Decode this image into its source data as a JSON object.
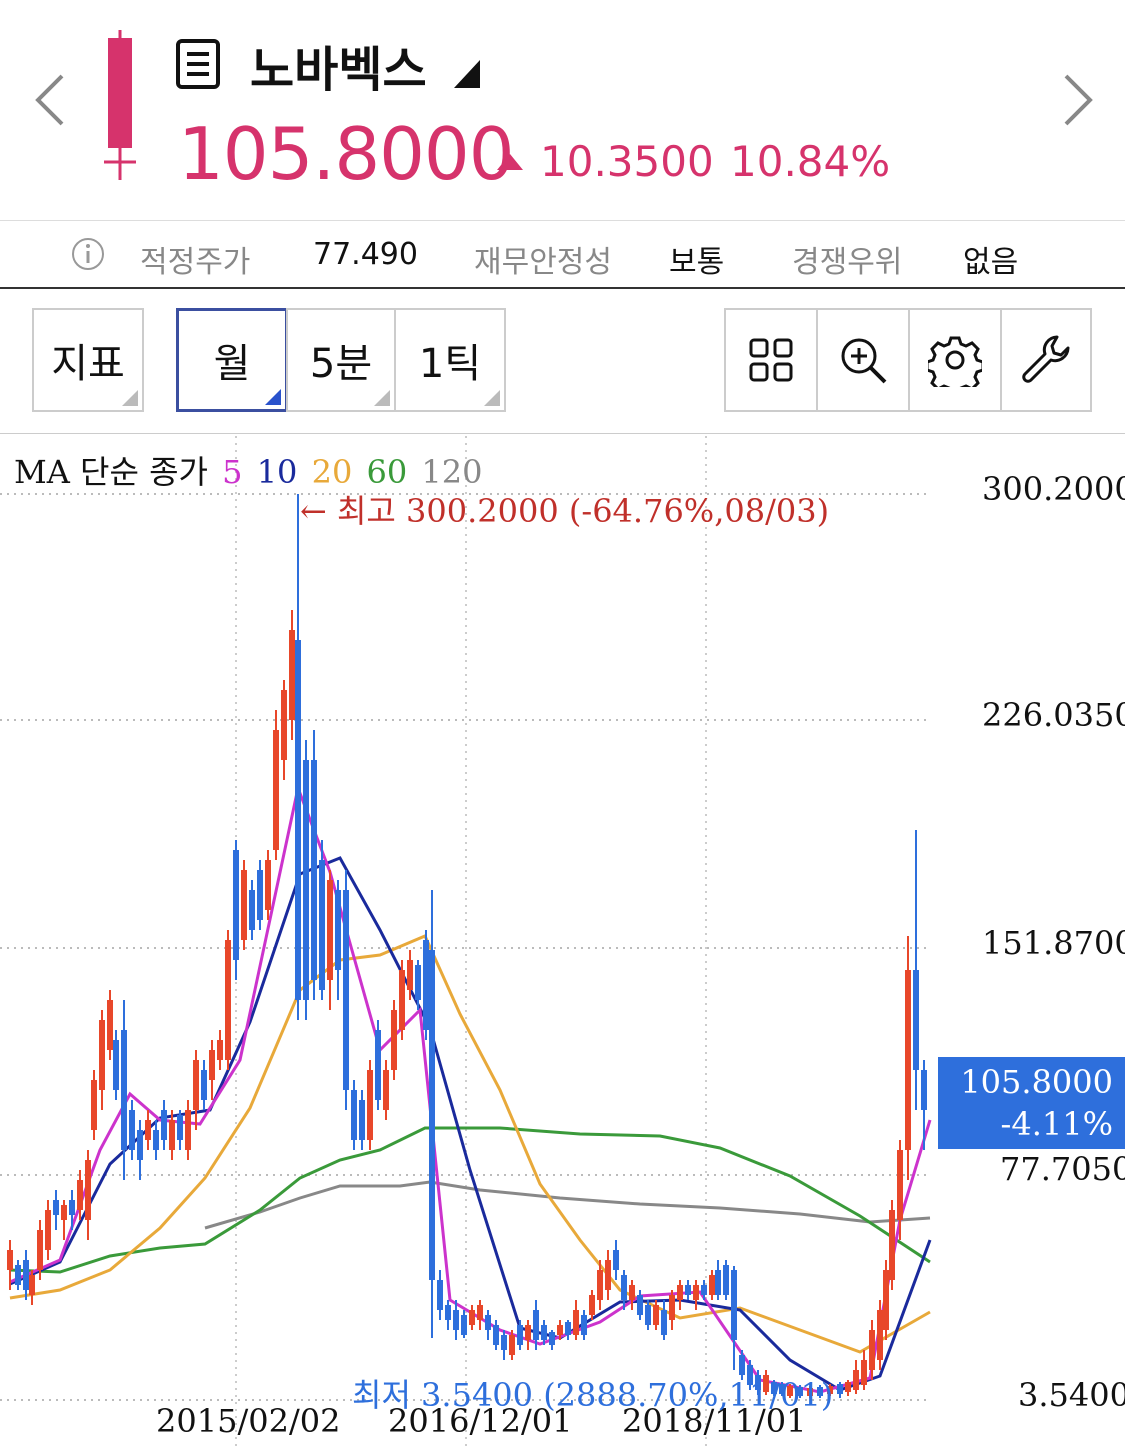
{
  "header": {
    "stock_name": "노바벡스",
    "price": "105.8000",
    "change": "10.3500",
    "change_percent": "10.84%",
    "up_color": "#d6336c"
  },
  "info": {
    "fair_price_label": "적정주가",
    "fair_price_value": "77.490",
    "stability_label": "재무안정성",
    "stability_value": "보통",
    "advantage_label": "경쟁우위",
    "advantage_value": "없음"
  },
  "toolbar": {
    "indicator": "지표",
    "month": "월",
    "five_min": "5분",
    "one_tick": "1틱"
  },
  "chart": {
    "legend_prefix": "MA 단순 종가",
    "ma_periods": [
      "5",
      "10",
      "20",
      "60",
      "120"
    ],
    "ma_colors": [
      "#cc33cc",
      "#1a2a9c",
      "#e8a93a",
      "#3a9a3a",
      "#888888"
    ],
    "y_ticks": [
      "300.2000",
      "226.0350",
      "151.8700",
      "77.7050",
      "3.5400"
    ],
    "x_ticks": [
      "2015/02/02",
      "2016/12/01",
      "2018/11/01"
    ],
    "high_annotation": "← 최고 300.2000 (-64.76%,08/03)",
    "low_annotation": "최저 3.5400 (2888.70%,11/01)",
    "current_price": "105.8000",
    "current_change": "-4.11%",
    "up_color": "#e8472a",
    "down_color": "#2e6fdc"
  }
}
